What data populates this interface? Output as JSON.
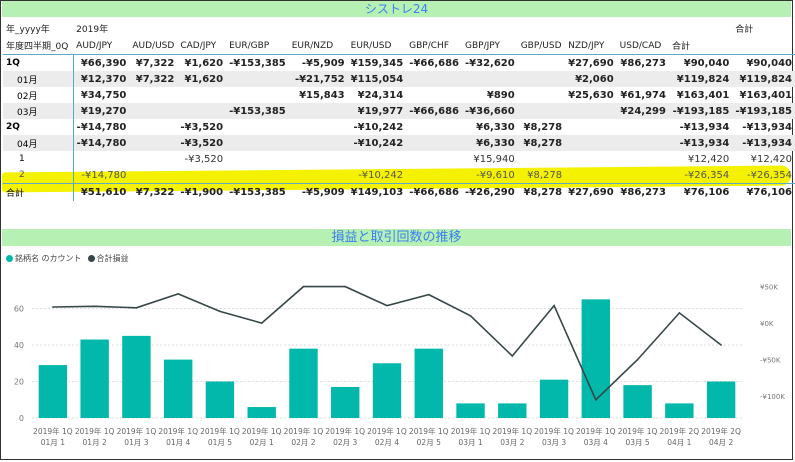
{
  "banner_title": "シストレ24",
  "table": {
    "hdr1": {
      "rowlabel": "年_yyyy年",
      "year": "2019年",
      "total": "合計"
    },
    "hdr2": {
      "rowlabel": "年度四半期_0Q",
      "columns": [
        "AUD/JPY",
        "AUD/USD",
        "CAD/JPY",
        "EUR/GBP",
        "EUR/NZD",
        "EUR/USD",
        "GBP/CHF",
        "GBP/JPY",
        "GBP/USD",
        "NZD/JPY",
        "USD/CAD",
        "合計"
      ]
    },
    "rows": [
      {
        "label": "1Q",
        "cells": [
          "¥66,390",
          "¥7,322",
          "¥1,620",
          "-¥153,385",
          "-¥5,909",
          "¥159,345",
          "-¥66,686",
          "-¥32,620",
          "",
          "¥27,690",
          "¥86,273",
          "¥90,040",
          "¥90,040"
        ]
      },
      {
        "label": "01月",
        "cells": [
          "¥12,370",
          "¥7,322",
          "¥1,620",
          "",
          "-¥21,752",
          "¥115,054",
          "",
          "",
          "",
          "¥2,060",
          "",
          "¥119,824",
          "¥119,824"
        ]
      },
      {
        "label": "02月",
        "cells": [
          "¥34,750",
          "",
          "",
          "",
          "¥15,843",
          "¥24,314",
          "",
          "¥890",
          "",
          "¥25,630",
          "¥61,974",
          "¥163,401",
          "¥163,401"
        ]
      },
      {
        "label": "03月",
        "cells": [
          "¥19,270",
          "",
          "",
          "-¥153,385",
          "",
          "¥19,977",
          "-¥66,686",
          "-¥36,660",
          "",
          "",
          "¥24,299",
          "-¥193,185",
          "-¥193,185"
        ]
      },
      {
        "label": "2Q",
        "cells": [
          "-¥14,780",
          "",
          "-¥3,520",
          "",
          "",
          "-¥10,242",
          "",
          "¥6,330",
          "¥8,278",
          "",
          "",
          "-¥13,934",
          "-¥13,934"
        ]
      },
      {
        "label": "04月",
        "cells": [
          "-¥14,780",
          "",
          "-¥3,520",
          "",
          "",
          "-¥10,242",
          "",
          "¥6,330",
          "¥8,278",
          "",
          "",
          "-¥13,934",
          "-¥13,934"
        ]
      },
      {
        "label": "1",
        "cells": [
          "",
          "",
          "-¥3,520",
          "",
          "",
          "",
          "",
          "¥15,940",
          "",
          "",
          "",
          "¥12,420",
          "¥12,420"
        ]
      },
      {
        "label": "2",
        "cells": [
          "-¥14,780",
          "",
          "",
          "",
          "",
          "-¥10,242",
          "",
          "-¥9,610",
          "¥8,278",
          "",
          "",
          "-¥26,354",
          "-¥26,354"
        ]
      },
      {
        "label": "合計",
        "cells": [
          "¥51,610",
          "¥7,322",
          "-¥1,900",
          "-¥153,385",
          "-¥5,909",
          "¥149,103",
          "-¥66,686",
          "-¥26,290",
          "¥8,278",
          "¥27,690",
          "¥86,273",
          "¥76,106",
          "¥76,106"
        ]
      }
    ]
  },
  "chart_title": "損益と取引回数の推移",
  "legend": {
    "bar_label": "銘柄名 のカウント",
    "line_label": "合計損益"
  },
  "colors": {
    "bar": "#01b8aa",
    "line": "#374649",
    "highlight": "#f4f200",
    "banner": "#b6f0b3",
    "banner_text": "#3b7ff2"
  },
  "chart_data": {
    "type": "bar",
    "categories_line1": [
      "2019年 1Q",
      "2019年 1Q",
      "2019年 1Q",
      "2019年 1Q",
      "2019年 1Q",
      "2019年 1Q",
      "2019年 1Q",
      "2019年 1Q",
      "2019年 1Q",
      "2019年 1Q",
      "2019年 1Q",
      "2019年 1Q",
      "2019年 1Q",
      "2019年 1Q",
      "2019年 1Q",
      "2019年 2Q",
      "2019年 2Q"
    ],
    "categories_line2": [
      "01月 1",
      "01月 2",
      "01月 3",
      "01月 4",
      "01月 5",
      "02月 1",
      "02月 2",
      "02月 3",
      "02月 4",
      "02月 5",
      "03月 1",
      "03月 2",
      "03月 3",
      "03月 4",
      "03月 5",
      "04月 1",
      "04月 2"
    ],
    "series": [
      {
        "name": "銘柄名 のカウント",
        "type": "bar",
        "axis": "left",
        "values": [
          29,
          43,
          45,
          32,
          20,
          6,
          38,
          17,
          30,
          38,
          8,
          8,
          21,
          65,
          18,
          8,
          20
        ]
      },
      {
        "name": "合計損益",
        "type": "line",
        "axis": "right",
        "values": [
          22000,
          23000,
          21000,
          40000,
          16000,
          0,
          50000,
          50000,
          24000,
          39000,
          10000,
          -45000,
          24000,
          -105000,
          -50000,
          14000,
          -30000
        ]
      }
    ],
    "ylim_left": [
      0,
      80
    ],
    "yticks_left": [
      0,
      20,
      40,
      60
    ],
    "ylim_right": [
      -130000,
      70000
    ],
    "yticks_right": [
      50000,
      0,
      -50000,
      -100000
    ],
    "yticklabels_right": [
      "¥50K",
      "¥0K",
      "-¥50K",
      "-¥100K"
    ],
    "grid": true,
    "legend_position": "top-left"
  }
}
